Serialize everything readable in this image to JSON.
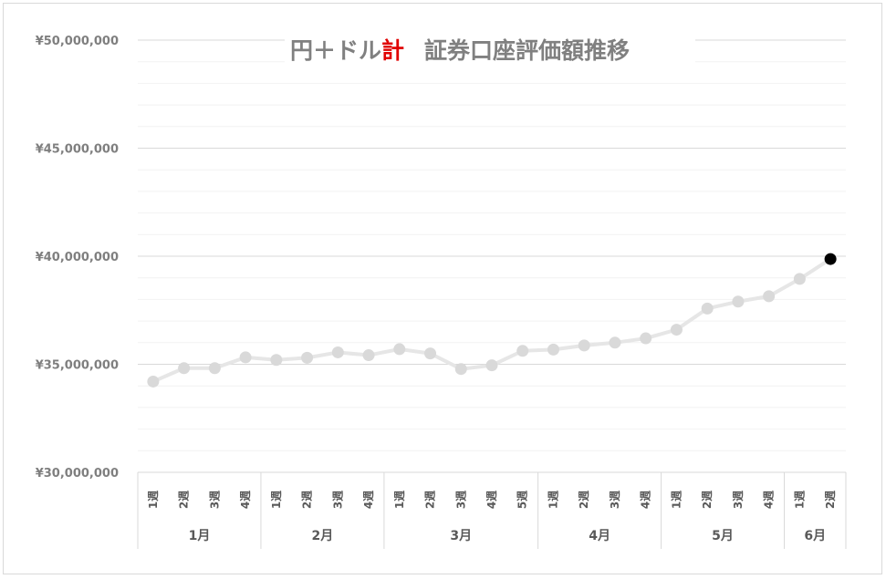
{
  "chart_data": {
    "type": "line",
    "title": {
      "part1": "円＋ドル",
      "accent": "計",
      "part2": "証券口座評価額推移",
      "accent_color": "#e00000"
    },
    "y_ticks": [
      "¥50,000,000",
      "¥45,000,000",
      "¥40,000,000",
      "¥35,000,000",
      "¥30,000,000"
    ],
    "ylim": [
      30000000,
      50000000
    ],
    "major_step": 5000000,
    "minor_step": 1000000,
    "grid": true,
    "months": [
      {
        "label": "1月",
        "weeks": [
          "1週",
          "2週",
          "3週",
          "4週"
        ]
      },
      {
        "label": "2月",
        "weeks": [
          "1週",
          "2週",
          "3週",
          "4週"
        ]
      },
      {
        "label": "3月",
        "weeks": [
          "1週",
          "2週",
          "3週",
          "4週",
          "5週"
        ]
      },
      {
        "label": "4月",
        "weeks": [
          "1週",
          "2週",
          "3週",
          "4週"
        ]
      },
      {
        "label": "5月",
        "weeks": [
          "1週",
          "2週",
          "3週",
          "4週"
        ]
      },
      {
        "label": "6月",
        "weeks": [
          "1週",
          "2週"
        ]
      }
    ],
    "series": [
      {
        "values": [
          34200000,
          34820000,
          34820000,
          35320000,
          35200000,
          35300000,
          35550000,
          35420000,
          35700000,
          35500000,
          34780000,
          34950000,
          35620000,
          35680000,
          35870000,
          36000000,
          36200000,
          36600000,
          37580000,
          37900000,
          38150000,
          38950000,
          39870000
        ],
        "line_color": "#e6e6e6",
        "point_color": "#d9d9d9",
        "highlight_color": "#000000"
      }
    ]
  }
}
